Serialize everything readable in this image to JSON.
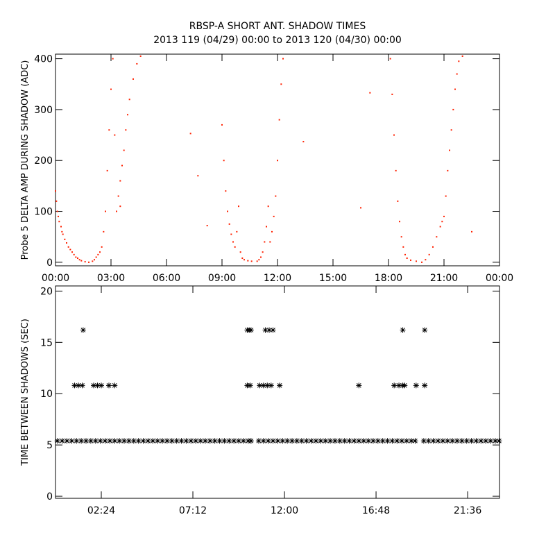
{
  "chart_data": [
    {
      "type": "scatter",
      "title": "RBSP-A SHORT ANT. SHADOW TIMES",
      "subtitle": "2013 119 (04/29) 00:00 to 2013 120 (04/30) 00:00",
      "ylabel": "Probe 5 DELTA AMP DURING SHADOW (ADC)",
      "marker": "dot",
      "color": "#ff2000",
      "xlim": [
        0,
        24
      ],
      "ylim": [
        -7,
        409
      ],
      "xticks": [
        {
          "value": 0,
          "label": "00:00"
        },
        {
          "value": 3,
          "label": "03:00"
        },
        {
          "value": 6,
          "label": "06:00"
        },
        {
          "value": 9,
          "label": "09:00"
        },
        {
          "value": 12,
          "label": "12:00"
        },
        {
          "value": 15,
          "label": "15:00"
        },
        {
          "value": 18,
          "label": "18:00"
        },
        {
          "value": 21,
          "label": "21:00"
        },
        {
          "value": 24,
          "label": "00:00"
        }
      ],
      "yticks": [
        0,
        100,
        200,
        300,
        400
      ],
      "x": [
        0.0,
        0.05,
        0.1,
        0.15,
        0.2,
        0.3,
        0.35,
        0.4,
        0.5,
        0.6,
        0.7,
        0.8,
        0.9,
        1.0,
        1.1,
        1.2,
        1.3,
        1.4,
        1.6,
        1.8,
        2.0,
        2.1,
        2.2,
        2.3,
        2.4,
        2.5,
        2.6,
        2.7,
        2.8,
        2.9,
        3.0,
        3.1,
        3.2,
        3.3,
        3.4,
        3.5,
        3.5,
        3.6,
        3.7,
        3.8,
        3.9,
        4.0,
        4.2,
        4.4,
        4.6,
        7.3,
        7.7,
        8.2,
        9.0,
        9.1,
        9.2,
        9.3,
        9.4,
        9.5,
        9.6,
        9.7,
        9.8,
        9.9,
        10.0,
        10.1,
        10.2,
        10.4,
        10.6,
        10.9,
        11.0,
        11.1,
        11.2,
        11.3,
        11.4,
        11.5,
        11.6,
        11.7,
        11.8,
        11.9,
        12.0,
        12.1,
        12.2,
        12.3,
        13.4,
        16.5,
        17.0,
        18.1,
        18.2,
        18.3,
        18.4,
        18.5,
        18.6,
        18.7,
        18.8,
        18.9,
        19.0,
        19.2,
        19.5,
        19.8,
        20.0,
        20.2,
        20.4,
        20.6,
        20.8,
        20.9,
        21.0,
        21.1,
        21.2,
        21.3,
        21.4,
        21.5,
        21.6,
        21.7,
        21.8,
        22.0,
        22.5
      ],
      "values": [
        140,
        120,
        100,
        90,
        80,
        70,
        60,
        55,
        45,
        38,
        30,
        25,
        20,
        15,
        10,
        8,
        5,
        3,
        1,
        0,
        2,
        5,
        10,
        15,
        20,
        30,
        60,
        100,
        180,
        260,
        340,
        400,
        250,
        100,
        130,
        160,
        110,
        190,
        220,
        260,
        290,
        320,
        360,
        390,
        405,
        253,
        170,
        72,
        270,
        200,
        140,
        100,
        75,
        55,
        40,
        30,
        60,
        110,
        20,
        8,
        5,
        3,
        2,
        2,
        5,
        10,
        20,
        40,
        70,
        110,
        40,
        60,
        90,
        130,
        200,
        280,
        350,
        400,
        237,
        107,
        333,
        400,
        330,
        250,
        180,
        120,
        80,
        50,
        30,
        15,
        8,
        4,
        2,
        0,
        5,
        15,
        30,
        50,
        70,
        80,
        90,
        130,
        180,
        220,
        260,
        300,
        340,
        370,
        395,
        405,
        60
      ]
    },
    {
      "type": "scatter",
      "ylabel": "TIME BETWEEN SHADOWS (SEC)",
      "marker": "asterisk",
      "color": "#000000",
      "xlim": [
        0,
        23.27
      ],
      "ylim": [
        -0.2,
        20.5
      ],
      "xticks": [
        {
          "value": 2.4,
          "label": "02:24"
        },
        {
          "value": 7.2,
          "label": "07:12"
        },
        {
          "value": 12,
          "label": "12:00"
        },
        {
          "value": 16.8,
          "label": "16:48"
        },
        {
          "value": 21.6,
          "label": "21:36"
        }
      ],
      "yticks": [
        0,
        5,
        10,
        15,
        20
      ],
      "x": [
        0.1,
        0.35,
        0.6,
        0.85,
        1.1,
        1.35,
        1.6,
        1.85,
        2.1,
        2.35,
        2.6,
        2.85,
        3.1,
        3.35,
        3.6,
        3.85,
        4.1,
        4.35,
        4.6,
        4.85,
        5.1,
        5.35,
        5.6,
        5.85,
        6.1,
        6.35,
        6.6,
        6.85,
        7.1,
        7.35,
        7.6,
        7.85,
        8.1,
        8.35,
        8.6,
        8.85,
        9.1,
        9.35,
        9.6,
        9.85,
        10.1,
        10.25,
        10.65,
        10.9,
        11.15,
        11.4,
        11.65,
        11.9,
        12.15,
        12.4,
        12.65,
        12.9,
        13.15,
        13.4,
        13.65,
        13.9,
        14.15,
        14.4,
        14.65,
        14.9,
        15.15,
        15.4,
        15.65,
        15.9,
        16.15,
        16.4,
        16.65,
        16.9,
        17.15,
        17.4,
        17.65,
        17.9,
        18.15,
        18.4,
        18.65,
        18.85,
        19.3,
        19.55,
        19.8,
        20.05,
        20.3,
        20.55,
        20.8,
        21.05,
        21.3,
        21.55,
        21.8,
        22.05,
        22.3,
        22.55,
        22.8,
        23.05,
        23.25,
        1.45,
        1.0,
        1.2,
        1.4,
        2.0,
        2.2,
        2.4,
        2.8,
        3.1,
        10.05,
        10.15,
        10.25,
        10.05,
        10.2,
        11.0,
        11.2,
        11.4,
        10.7,
        10.9,
        11.1,
        11.3,
        11.75,
        15.9,
        17.75,
        18.0,
        18.2,
        18.3,
        18.2,
        18.9,
        19.35,
        19.35
      ],
      "values": [
        5.4,
        5.4,
        5.4,
        5.4,
        5.4,
        5.4,
        5.4,
        5.4,
        5.4,
        5.4,
        5.4,
        5.4,
        5.4,
        5.4,
        5.4,
        5.4,
        5.4,
        5.4,
        5.4,
        5.4,
        5.4,
        5.4,
        5.4,
        5.4,
        5.4,
        5.4,
        5.4,
        5.4,
        5.4,
        5.4,
        5.4,
        5.4,
        5.4,
        5.4,
        5.4,
        5.4,
        5.4,
        5.4,
        5.4,
        5.4,
        5.4,
        5.4,
        5.4,
        5.4,
        5.4,
        5.4,
        5.4,
        5.4,
        5.4,
        5.4,
        5.4,
        5.4,
        5.4,
        5.4,
        5.4,
        5.4,
        5.4,
        5.4,
        5.4,
        5.4,
        5.4,
        5.4,
        5.4,
        5.4,
        5.4,
        5.4,
        5.4,
        5.4,
        5.4,
        5.4,
        5.4,
        5.4,
        5.4,
        5.4,
        5.4,
        5.4,
        5.4,
        5.4,
        5.4,
        5.4,
        5.4,
        5.4,
        5.4,
        5.4,
        5.4,
        5.4,
        5.4,
        5.4,
        5.4,
        5.4,
        5.4,
        5.4,
        5.4,
        16.2,
        10.8,
        10.8,
        10.8,
        10.8,
        10.8,
        10.8,
        10.8,
        10.8,
        16.2,
        16.2,
        16.2,
        10.8,
        10.8,
        16.2,
        16.2,
        16.2,
        10.8,
        10.8,
        10.8,
        10.8,
        10.8,
        10.8,
        10.8,
        10.8,
        10.8,
        10.8,
        16.2,
        10.8,
        16.2,
        10.8
      ]
    }
  ]
}
